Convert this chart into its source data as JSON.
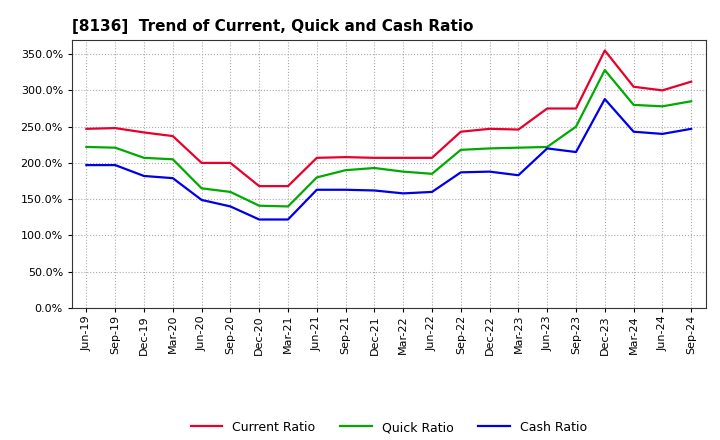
{
  "title": "[8136]  Trend of Current, Quick and Cash Ratio",
  "x_labels": [
    "Jun-19",
    "Sep-19",
    "Dec-19",
    "Mar-20",
    "Jun-20",
    "Sep-20",
    "Dec-20",
    "Mar-21",
    "Jun-21",
    "Sep-21",
    "Dec-21",
    "Mar-22",
    "Jun-22",
    "Sep-22",
    "Dec-22",
    "Mar-23",
    "Jun-23",
    "Sep-23",
    "Dec-23",
    "Mar-24",
    "Jun-24",
    "Sep-24"
  ],
  "current_ratio": [
    247,
    248,
    242,
    237,
    200,
    200,
    168,
    168,
    207,
    208,
    207,
    207,
    207,
    243,
    247,
    246,
    275,
    275,
    355,
    305,
    300,
    312
  ],
  "quick_ratio": [
    222,
    221,
    207,
    205,
    165,
    160,
    141,
    140,
    180,
    190,
    193,
    188,
    185,
    218,
    220,
    221,
    222,
    250,
    328,
    280,
    278,
    285
  ],
  "cash_ratio": [
    197,
    197,
    182,
    179,
    149,
    140,
    122,
    122,
    163,
    163,
    162,
    158,
    160,
    187,
    188,
    183,
    220,
    215,
    288,
    243,
    240,
    247
  ],
  "current_color": "#e8002d",
  "quick_color": "#00aa00",
  "cash_color": "#0000e8",
  "ylim": [
    0,
    370
  ],
  "yticks": [
    0,
    50,
    100,
    150,
    200,
    250,
    300,
    350
  ],
  "background_color": "#ffffff",
  "plot_background": "#ffffff",
  "grid_color": "#aaaaaa",
  "line_width": 1.6,
  "title_fontsize": 11,
  "tick_fontsize": 8,
  "legend_fontsize": 9
}
